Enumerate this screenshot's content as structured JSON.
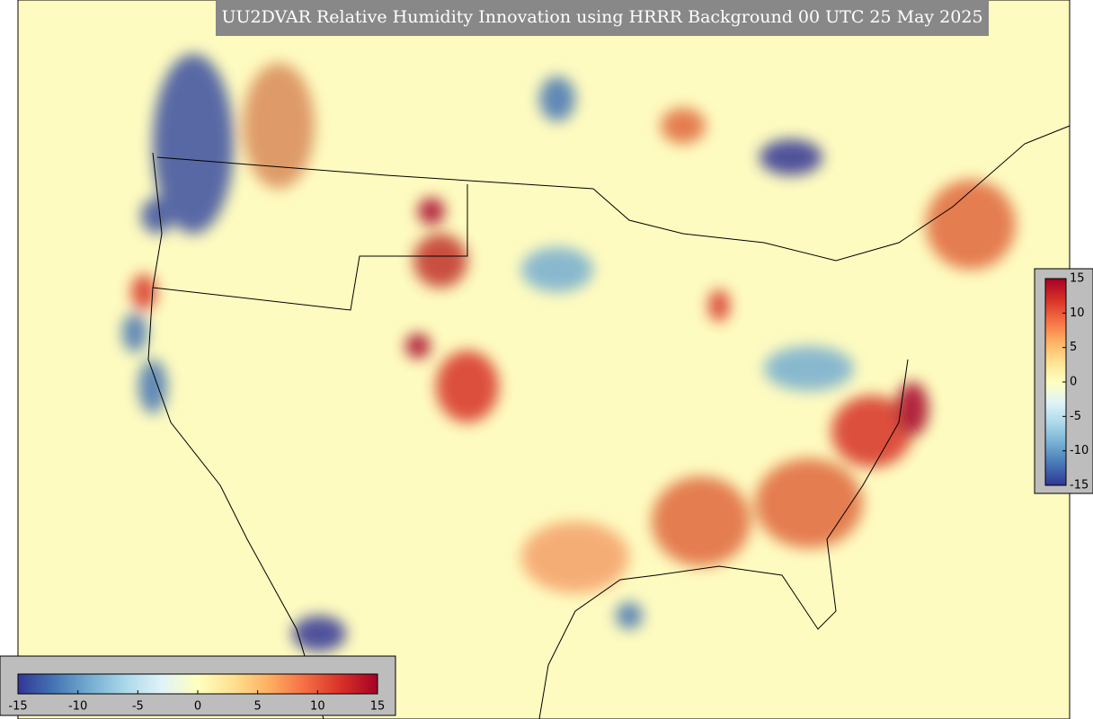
{
  "title": "UU2DVAR Relative Humidity Innovation using HRRR Background 00 UTC 25 May 2025",
  "colorbar": {
    "lim": [
      -15,
      15
    ],
    "ticks": [
      -15,
      -10,
      -5,
      0,
      5,
      10,
      15
    ],
    "colors": [
      "#313695",
      "#4575b4",
      "#74add1",
      "#abd9e9",
      "#e0f3f8",
      "#ffffbf",
      "#fee090",
      "#fdae61",
      "#f46d43",
      "#d73027",
      "#a50026"
    ]
  }
}
